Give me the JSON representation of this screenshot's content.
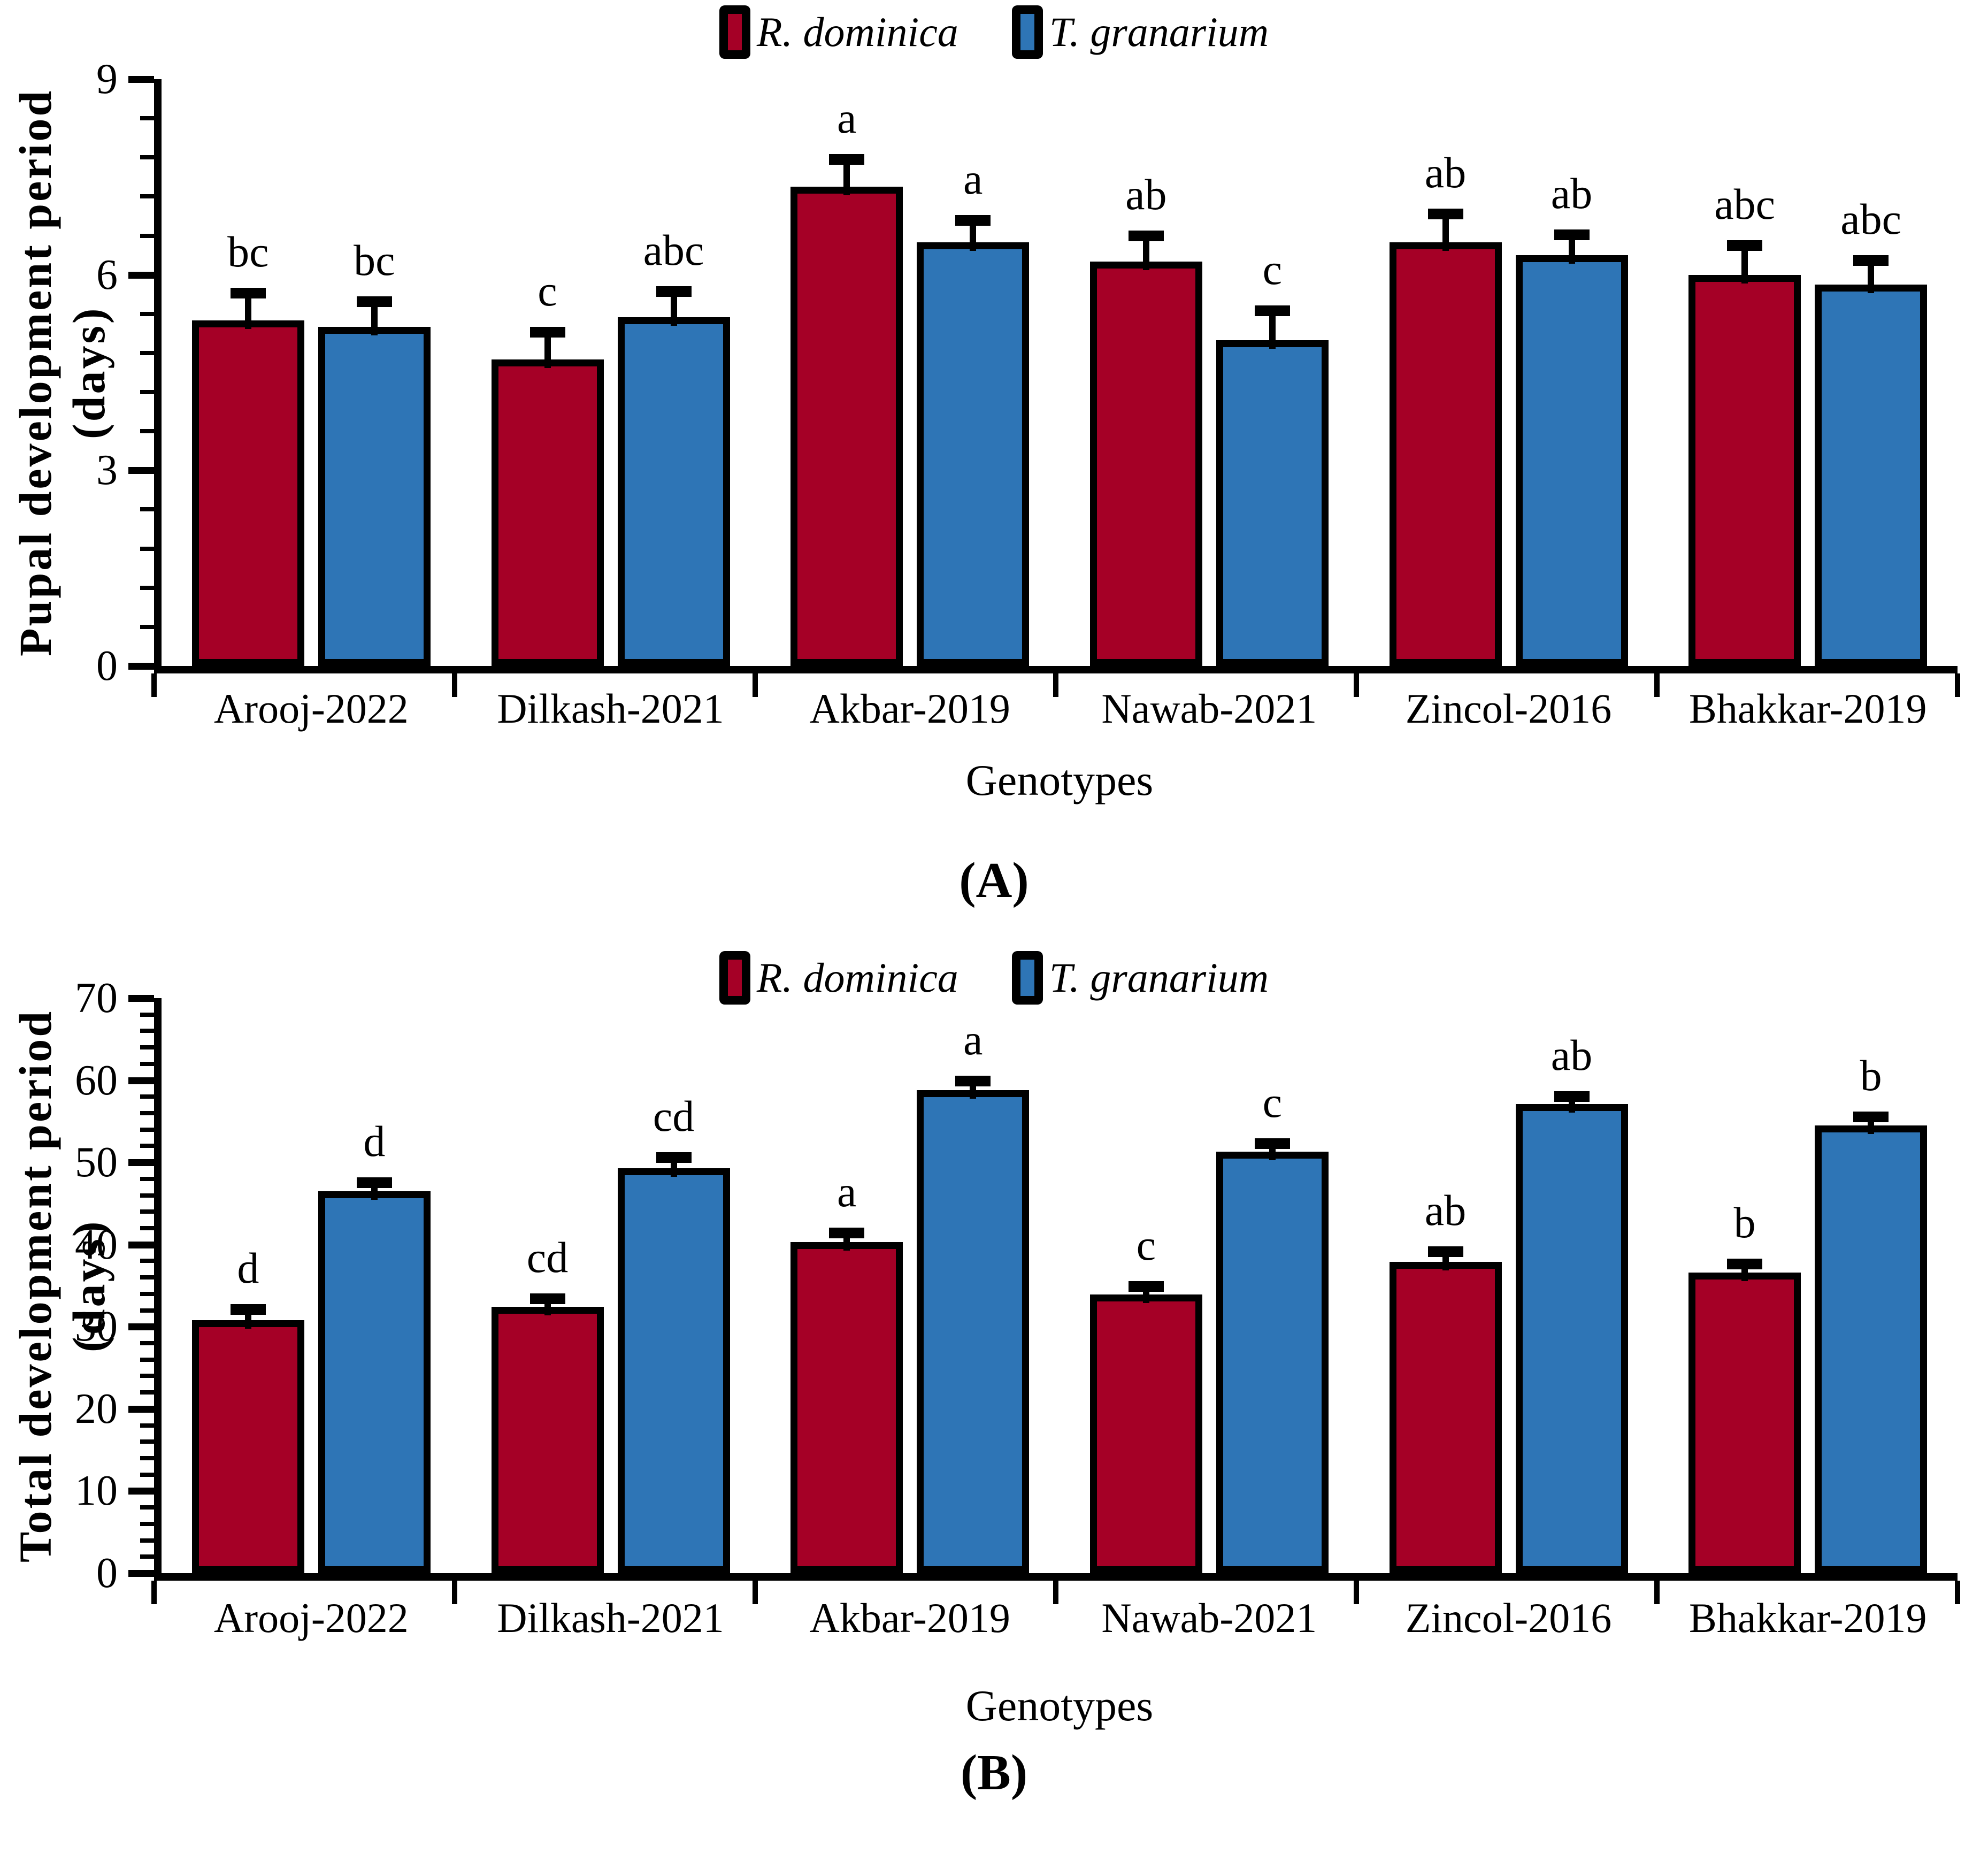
{
  "figure": {
    "panel_a_caption": "(A)",
    "panel_b_caption": "(B)",
    "series_colors": {
      "r_dominica": "#A50026",
      "t_granarium": "#2E75B6"
    }
  },
  "chart_data": [
    {
      "id": "A",
      "type": "bar",
      "caption": "(A)",
      "ylabel": "Pupal development period (days)",
      "xlabel": "Genotypes",
      "ylim": [
        0,
        9
      ],
      "ytick_step": 3,
      "minor_tick_step": 0.6,
      "yticks": [
        0,
        3,
        6,
        9
      ],
      "grid": false,
      "legend_position": "top-center",
      "error_bars": true,
      "categories": [
        "Arooj-2022",
        "Dilkash-2021",
        "Akbar-2019",
        "Nawab-2021",
        "Zincol-2016",
        "Bhakkar-2019"
      ],
      "series": [
        {
          "name": "R. dominica",
          "color": "#A50026",
          "values": [
            5.3,
            4.7,
            7.35,
            6.2,
            6.5,
            6.0
          ],
          "errors": [
            0.35,
            0.35,
            0.35,
            0.33,
            0.37,
            0.38
          ],
          "letters": [
            "bc",
            "c",
            "a",
            "ab",
            "ab",
            "abc"
          ]
        },
        {
          "name": "T. granarium",
          "color": "#2E75B6",
          "values": [
            5.2,
            5.35,
            6.5,
            5.0,
            6.3,
            5.85
          ],
          "errors": [
            0.32,
            0.33,
            0.27,
            0.38,
            0.25,
            0.3
          ],
          "letters": [
            "bc",
            "abc",
            "a",
            "c",
            "ab",
            "abc"
          ]
        }
      ]
    },
    {
      "id": "B",
      "type": "bar",
      "caption": "(B)",
      "ylabel": "Total development period (days)",
      "xlabel": "Genotypes",
      "ylim": [
        0,
        70
      ],
      "ytick_step": 10,
      "minor_tick_step": 2,
      "yticks": [
        0,
        10,
        20,
        30,
        40,
        50,
        60,
        70
      ],
      "grid": false,
      "legend_position": "top-center",
      "error_bars": true,
      "categories": [
        "Arooj-2022",
        "Dilkash-2021",
        "Akbar-2019",
        "Nawab-2021",
        "Zincol-2016",
        "Bhakkar-2019"
      ],
      "series": [
        {
          "name": "R. dominica",
          "color": "#A50026",
          "values": [
            30.8,
            32.4,
            40.3,
            33.9,
            37.9,
            36.6
          ],
          "errors": [
            0.8,
            0.5,
            0.6,
            0.5,
            0.7,
            0.5
          ],
          "letters": [
            "d",
            "cd",
            "a",
            "c",
            "ab",
            "b"
          ]
        },
        {
          "name": "T. granarium",
          "color": "#2E75B6",
          "values": [
            46.5,
            49.3,
            58.8,
            51.3,
            57.1,
            54.5
          ],
          "errors": [
            0.5,
            0.8,
            0.6,
            0.5,
            0.4,
            0.5
          ],
          "letters": [
            "d",
            "cd",
            "a",
            "c",
            "ab",
            "b"
          ]
        }
      ]
    }
  ]
}
